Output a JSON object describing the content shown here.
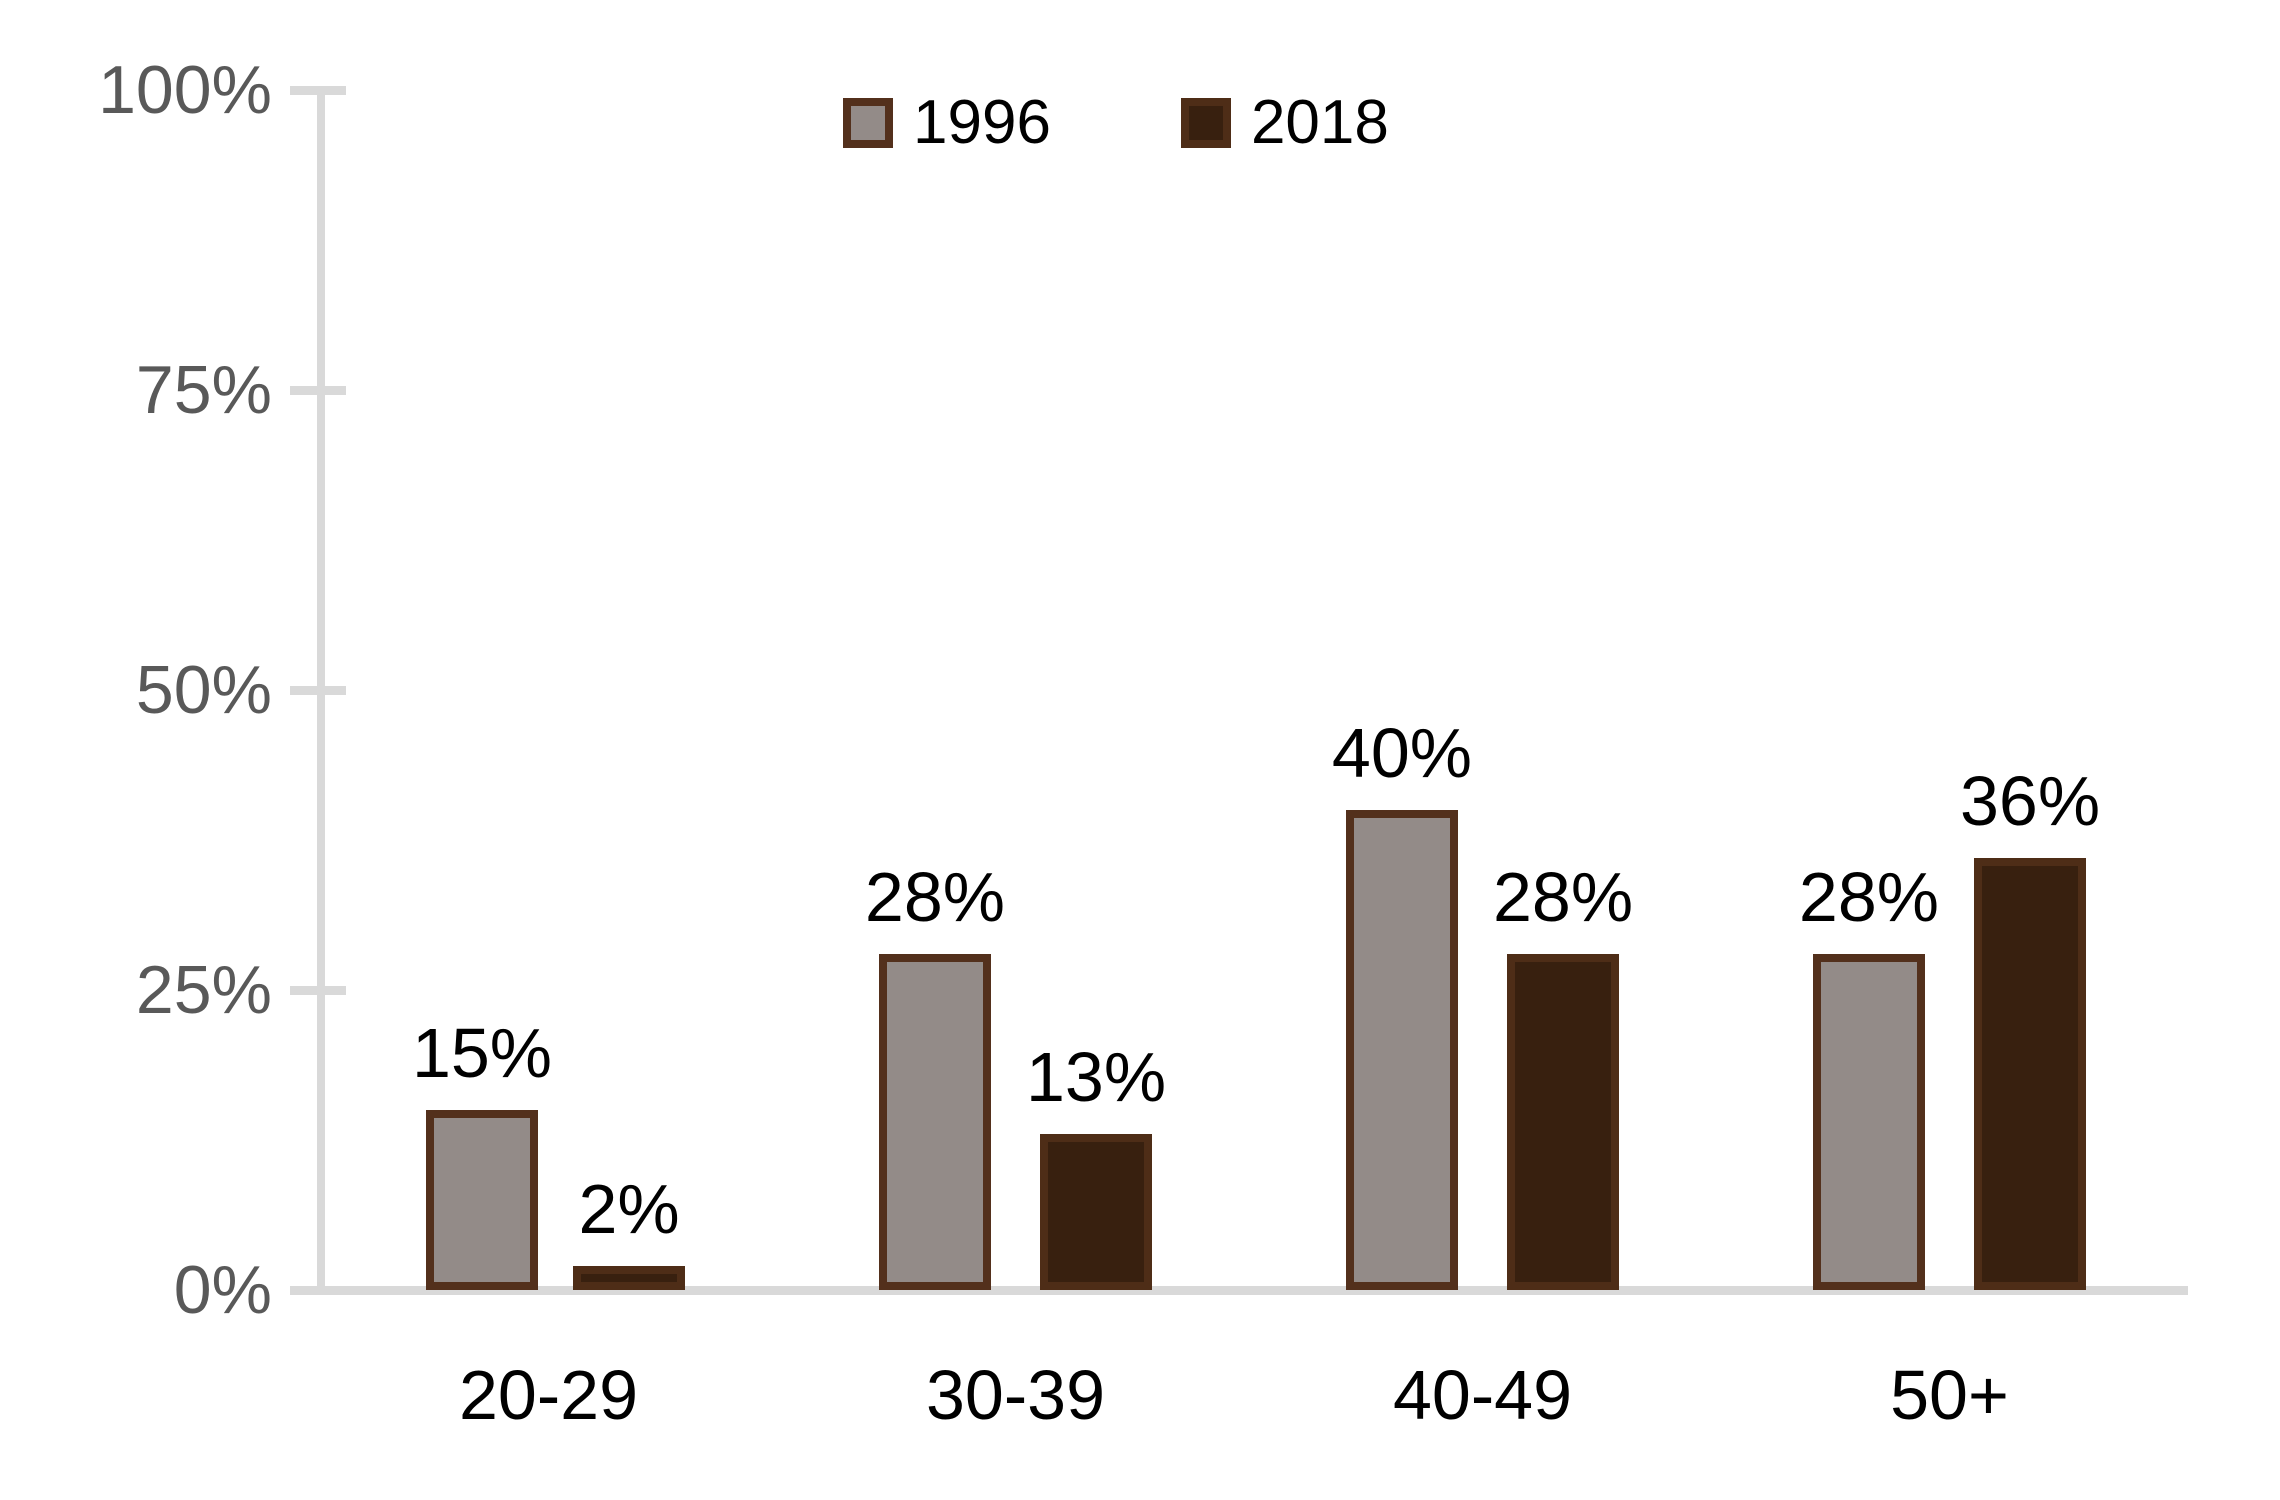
{
  "chart_data": {
    "type": "bar",
    "title": "",
    "xlabel": "",
    "ylabel": "",
    "grid": false,
    "legend_position": "top-center",
    "categories": [
      "20-29",
      "30-39",
      "40-49",
      "50+"
    ],
    "series": [
      {
        "name": "1996",
        "values": [
          15,
          28,
          40,
          28
        ],
        "labels": [
          "15%",
          "28%",
          "40%",
          "28%"
        ],
        "fill": "#938B88",
        "border": "#53301C"
      },
      {
        "name": "2018",
        "values": [
          2,
          13,
          28,
          36
        ],
        "labels": [
          "2%",
          "13%",
          "28%",
          "36%"
        ],
        "fill": "#38200F",
        "border": "#4E2D17"
      }
    ],
    "y_axis": {
      "min": 0,
      "max": 100,
      "ticks": [
        {
          "label": "100%",
          "value": 100
        },
        {
          "label": "75%",
          "value": 75
        },
        {
          "label": "50%",
          "value": 50
        },
        {
          "label": "25%",
          "value": 25
        },
        {
          "label": "0%",
          "value": 0
        }
      ]
    },
    "colors": {
      "axis_line": "#D9D9D9",
      "y_tick_label": "#595959",
      "data_label": "#000000",
      "x_label": "#000000"
    }
  }
}
